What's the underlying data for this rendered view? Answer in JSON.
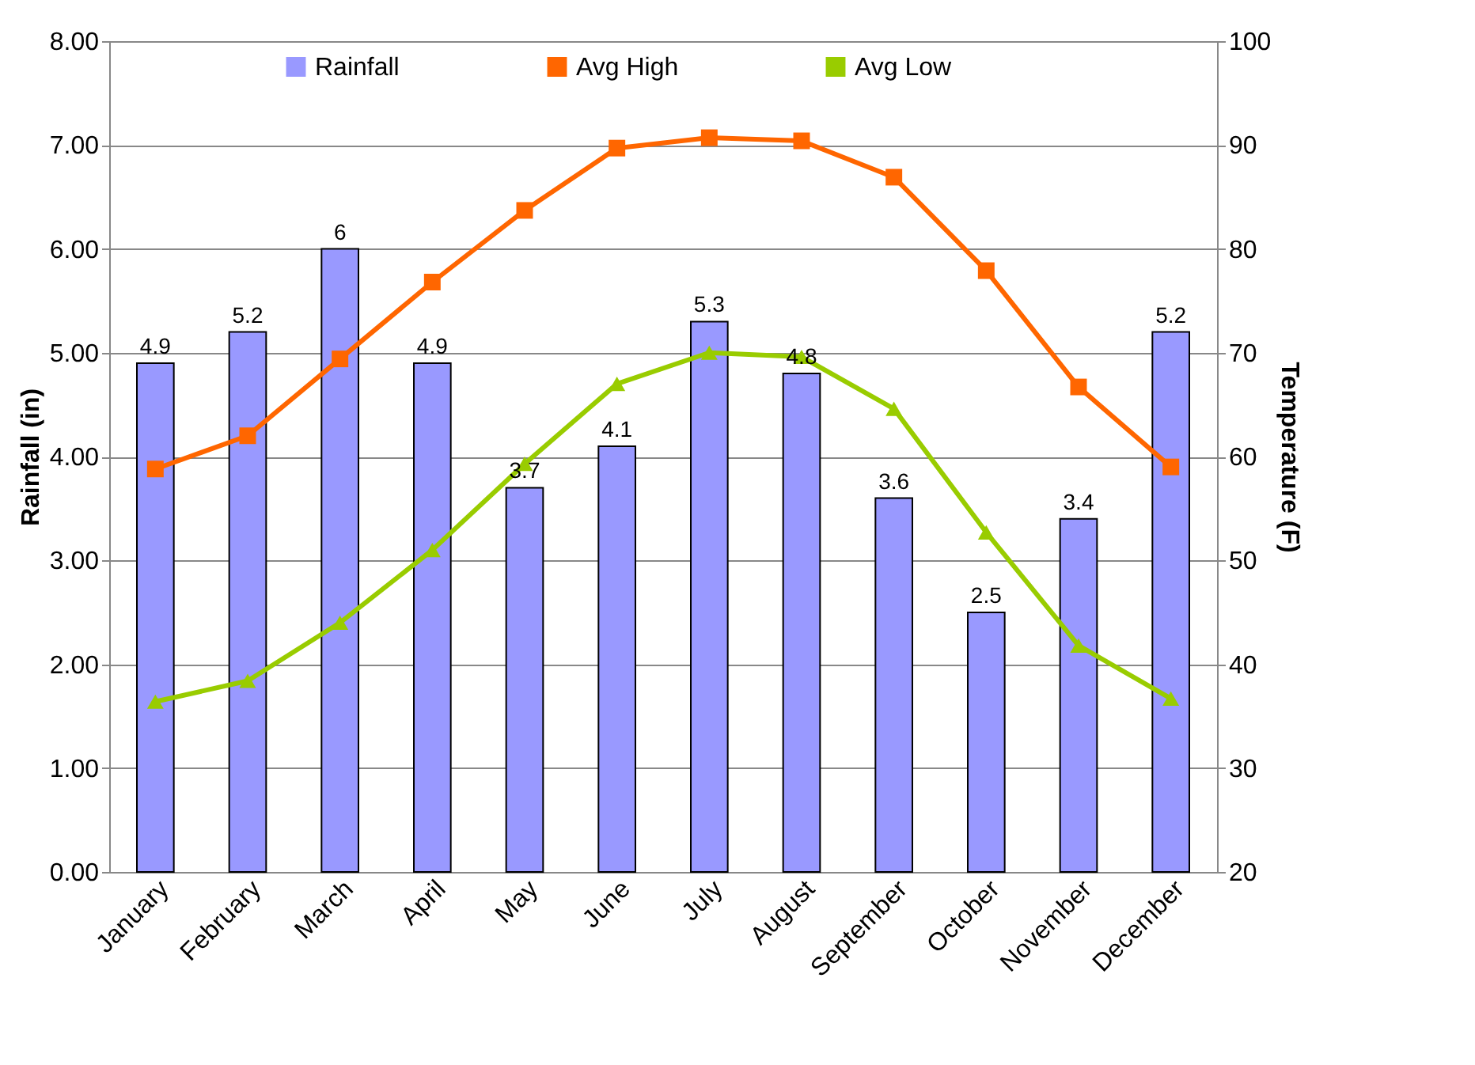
{
  "chart_data": {
    "type": "bar",
    "ylabel": "Rainfall (in)",
    "y2label": "Temperature (F)",
    "categories": [
      "January",
      "February",
      "March",
      "April",
      "May",
      "June",
      "July",
      "August",
      "September",
      "October",
      "November",
      "December"
    ],
    "series": [
      {
        "name": "Rainfall",
        "color": "#9999ff",
        "values": [
          4.9,
          5.2,
          6,
          4.9,
          3.7,
          4.1,
          5.3,
          4.8,
          3.6,
          2.5,
          3.4,
          5.2
        ],
        "value_labels": [
          "4.9",
          "5.2",
          "6",
          "4.9",
          "3.7",
          "4.1",
          "5.3",
          "4.8",
          "3.6",
          "2.5",
          "3.4",
          "5.2"
        ]
      },
      {
        "name": "Avg High",
        "type": "line",
        "axis": "y2",
        "color": "#ff6600",
        "marker": "square",
        "values": [
          58.8,
          62,
          69.4,
          76.8,
          83.7,
          89.7,
          90.7,
          90.4,
          86.9,
          77.9,
          66.7,
          59
        ]
      },
      {
        "name": "Avg Low",
        "type": "line",
        "axis": "y2",
        "color": "#99cc00",
        "marker": "triangle",
        "values": [
          36.4,
          38.4,
          44,
          51,
          59.3,
          67,
          70,
          69.6,
          64.6,
          52.7,
          41.8,
          36.7
        ]
      }
    ],
    "ylim": [
      0,
      8
    ],
    "yticks": [
      {
        "value": 0,
        "label": "0.00"
      },
      {
        "value": 1,
        "label": "1.00"
      },
      {
        "value": 2,
        "label": "2.00"
      },
      {
        "value": 3,
        "label": "3.00"
      },
      {
        "value": 4,
        "label": "4.00"
      },
      {
        "value": 5,
        "label": "5.00"
      },
      {
        "value": 6,
        "label": "6.00"
      },
      {
        "value": 7,
        "label": "7.00"
      },
      {
        "value": 8,
        "label": "8.00"
      }
    ],
    "y2lim": [
      20,
      100
    ],
    "y2ticks": [
      20,
      30,
      40,
      50,
      60,
      70,
      80,
      90,
      100
    ],
    "grid": "y",
    "legend": "top"
  }
}
